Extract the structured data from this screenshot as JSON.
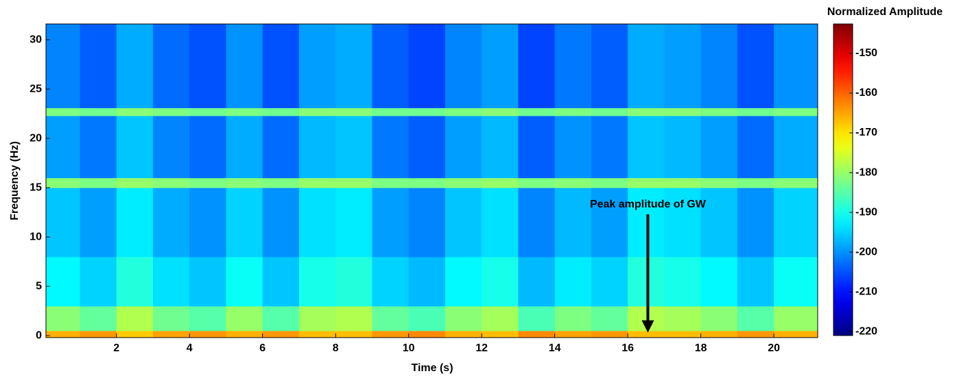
{
  "chart_data": {
    "type": "heatmap",
    "xlabel": "Time (s)",
    "ylabel": "Frequency (Hz)",
    "colormap": "jet",
    "x_edges": [
      0.07,
      1,
      2,
      3,
      4,
      5,
      6,
      7,
      8,
      9,
      10,
      11,
      12,
      13,
      14,
      15,
      16,
      17,
      18,
      19,
      20,
      21.2
    ],
    "y_edges": [
      -0.2,
      0.5,
      3,
      8,
      15,
      16,
      22.3,
      23.1,
      31.6
    ],
    "z": [
      [
        -166,
        -164,
        -168,
        -165,
        -164,
        -166,
        -164,
        -167,
        -167,
        -164,
        -163,
        -166,
        -167,
        -163,
        -165,
        -164,
        -167,
        -167,
        -166,
        -164,
        -166
      ],
      [
        -181,
        -184,
        -178,
        -183,
        -185,
        -180,
        -185,
        -179,
        -178,
        -184,
        -186,
        -181,
        -179,
        -186,
        -182,
        -184,
        -178,
        -179,
        -181,
        -185,
        -180
      ],
      [
        -192,
        -195,
        -189,
        -194,
        -196,
        -191,
        -196,
        -190,
        -189,
        -195,
        -197,
        -192,
        -190,
        -197,
        -193,
        -195,
        -189,
        -190,
        -192,
        -196,
        -191
      ],
      [
        -196,
        -199,
        -193,
        -198,
        -200,
        -195,
        -200,
        -194,
        -193,
        -199,
        -201,
        -196,
        -194,
        -201,
        -197,
        -199,
        -193,
        -194,
        -196,
        -200,
        -195
      ],
      [
        -181,
        -182,
        -180,
        -181,
        -182,
        -181,
        -182,
        -180,
        -180,
        -182,
        -182,
        -181,
        -180,
        -182,
        -181,
        -182,
        -180,
        -180,
        -181,
        -182,
        -181
      ],
      [
        -199,
        -202,
        -196,
        -201,
        -203,
        -198,
        -203,
        -197,
        -196,
        -202,
        -204,
        -199,
        -197,
        -204,
        -200,
        -202,
        -196,
        -197,
        -199,
        -203,
        -198
      ],
      [
        -182,
        -183,
        -181,
        -182,
        -183,
        -182,
        -183,
        -181,
        -181,
        -183,
        -183,
        -182,
        -181,
        -183,
        -182,
        -183,
        -181,
        -181,
        -182,
        -183,
        -182
      ],
      [
        -201,
        -204,
        -198,
        -203,
        -205,
        -200,
        -205,
        -199,
        -198,
        -204,
        -206,
        -201,
        -199,
        -206,
        -202,
        -204,
        -198,
        -199,
        -201,
        -205,
        -200
      ]
    ],
    "xlim": [
      0.07,
      21.2
    ],
    "ylim": [
      -0.2,
      31.6
    ],
    "xticks": [
      2,
      4,
      6,
      8,
      10,
      12,
      14,
      16,
      18,
      20
    ],
    "yticks": [
      0,
      5,
      10,
      15,
      20,
      25,
      30
    ],
    "colorbar": {
      "label": "Normalized Amplitude",
      "lim": [
        -221,
        -142.6
      ],
      "ticks": [
        -150,
        -160,
        -170,
        -180,
        -190,
        -200,
        -210,
        -220
      ]
    },
    "annotation": {
      "text": "Peak amplitude of GW",
      "xytext": [
        16.55,
        12.3
      ],
      "xy": [
        16.55,
        0.3
      ]
    }
  }
}
